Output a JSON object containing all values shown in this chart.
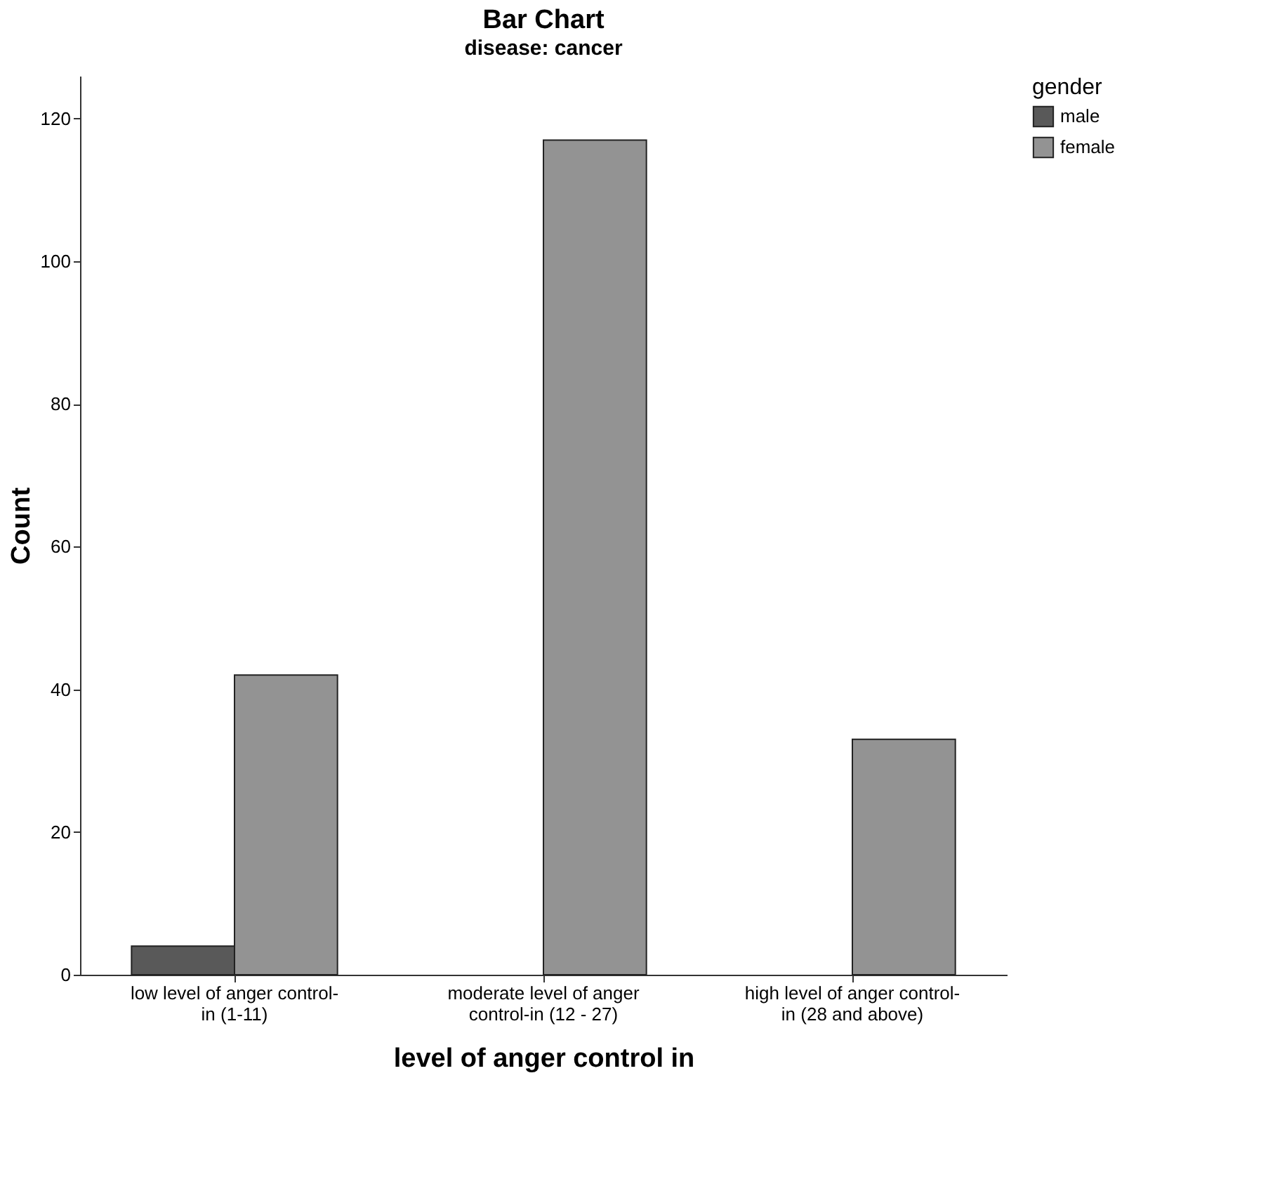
{
  "chart_data": {
    "type": "bar",
    "title": "Bar Chart",
    "subtitle": "disease: cancer",
    "xlabel": "level of anger control in",
    "ylabel": "Count",
    "legend_title": "gender",
    "categories": [
      "low level of anger control-in (1-11)",
      "moderate level of anger control-in (12 - 27)",
      "high level of anger control-in (28 and above)"
    ],
    "series": [
      {
        "name": "male",
        "color": "#595959",
        "values": [
          4,
          null,
          null
        ]
      },
      {
        "name": "female",
        "color": "#939393",
        "values": [
          42,
          117,
          33
        ]
      }
    ],
    "ylim": [
      0,
      126
    ],
    "yticks": [
      0,
      20,
      40,
      60,
      80,
      100,
      120
    ],
    "grid": false,
    "legend": "top right"
  }
}
